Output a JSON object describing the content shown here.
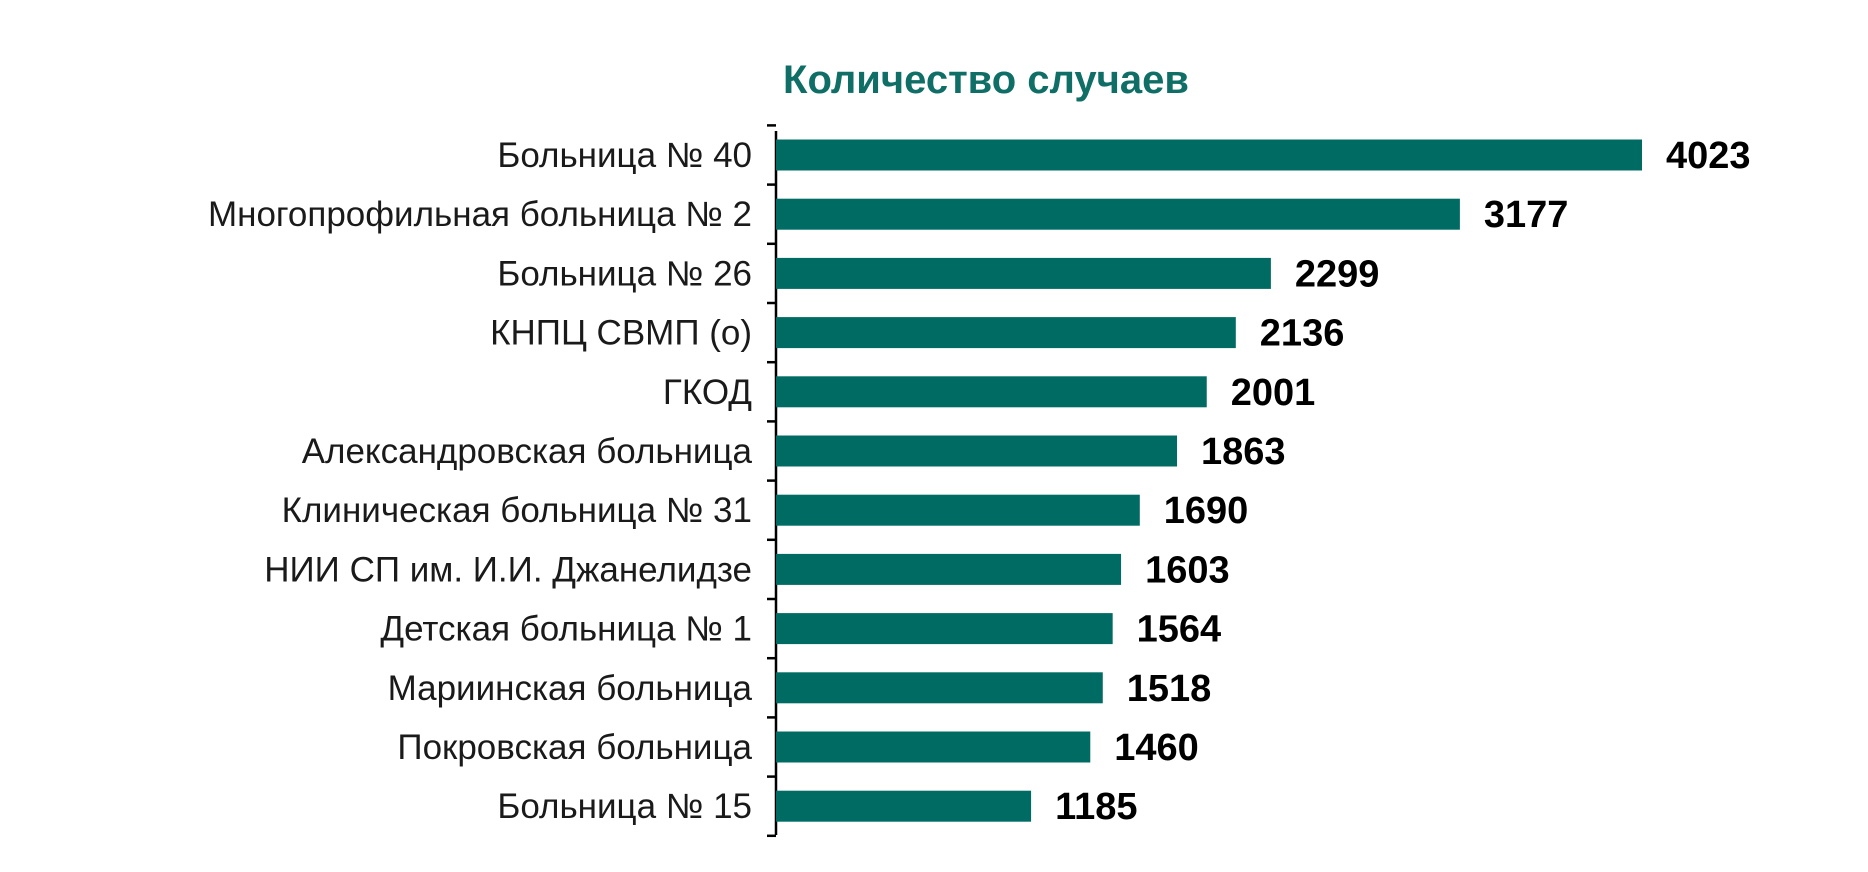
{
  "chart_data": {
    "type": "bar",
    "orientation": "horizontal",
    "title": "Количество случаев",
    "xlabel": "",
    "ylabel": "",
    "categories": [
      "Больница № 40",
      "Многопрофильная больница № 2",
      "Больница № 26",
      "КНПЦ СВМП (о)",
      "ГКОД",
      "Александровская больница",
      "Клиническая больница № 31",
      "НИИ СП им. И.И. Джанелидзе",
      "Детская больница № 1",
      "Мариинская больница",
      "Покровская больница",
      "Больница № 15"
    ],
    "values": [
      4023,
      3177,
      2299,
      2136,
      2001,
      1863,
      1690,
      1603,
      1564,
      1518,
      1460,
      1185
    ],
    "xlim": [
      0,
      4023
    ],
    "grid": false,
    "legend": "none",
    "data_labels": true
  },
  "colors": {
    "bar": "#006b63",
    "title": "#0f6e66",
    "axis": "#000000"
  }
}
